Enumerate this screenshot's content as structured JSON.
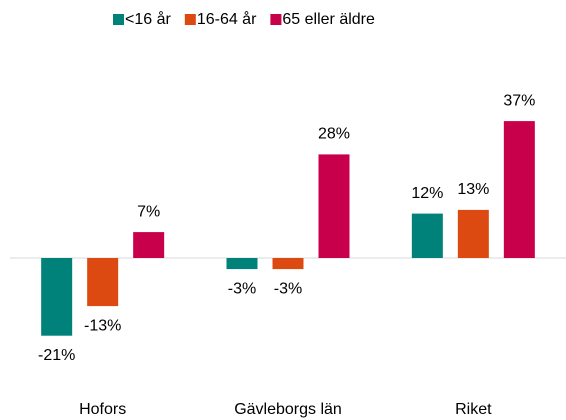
{
  "chart_data": {
    "type": "bar",
    "categories": [
      "Hofors",
      "Gävleborgs län",
      "Riket"
    ],
    "series": [
      {
        "name": "<16 år",
        "color": "#00827a",
        "values": [
          -21,
          -3,
          12
        ],
        "value_labels": [
          "-21%",
          "-3%",
          "12%"
        ]
      },
      {
        "name": "16-64 år",
        "color": "#dc4a12",
        "values": [
          -13,
          -3,
          13
        ],
        "value_labels": [
          "-13%",
          "-3%",
          "13%"
        ]
      },
      {
        "name": "65 eller äldre",
        "color": "#c8004b",
        "values": [
          7,
          28,
          37
        ],
        "value_labels": [
          "7%",
          "28%",
          "37%"
        ]
      }
    ],
    "ylim": [
      -25,
      45
    ],
    "legend": "top"
  }
}
